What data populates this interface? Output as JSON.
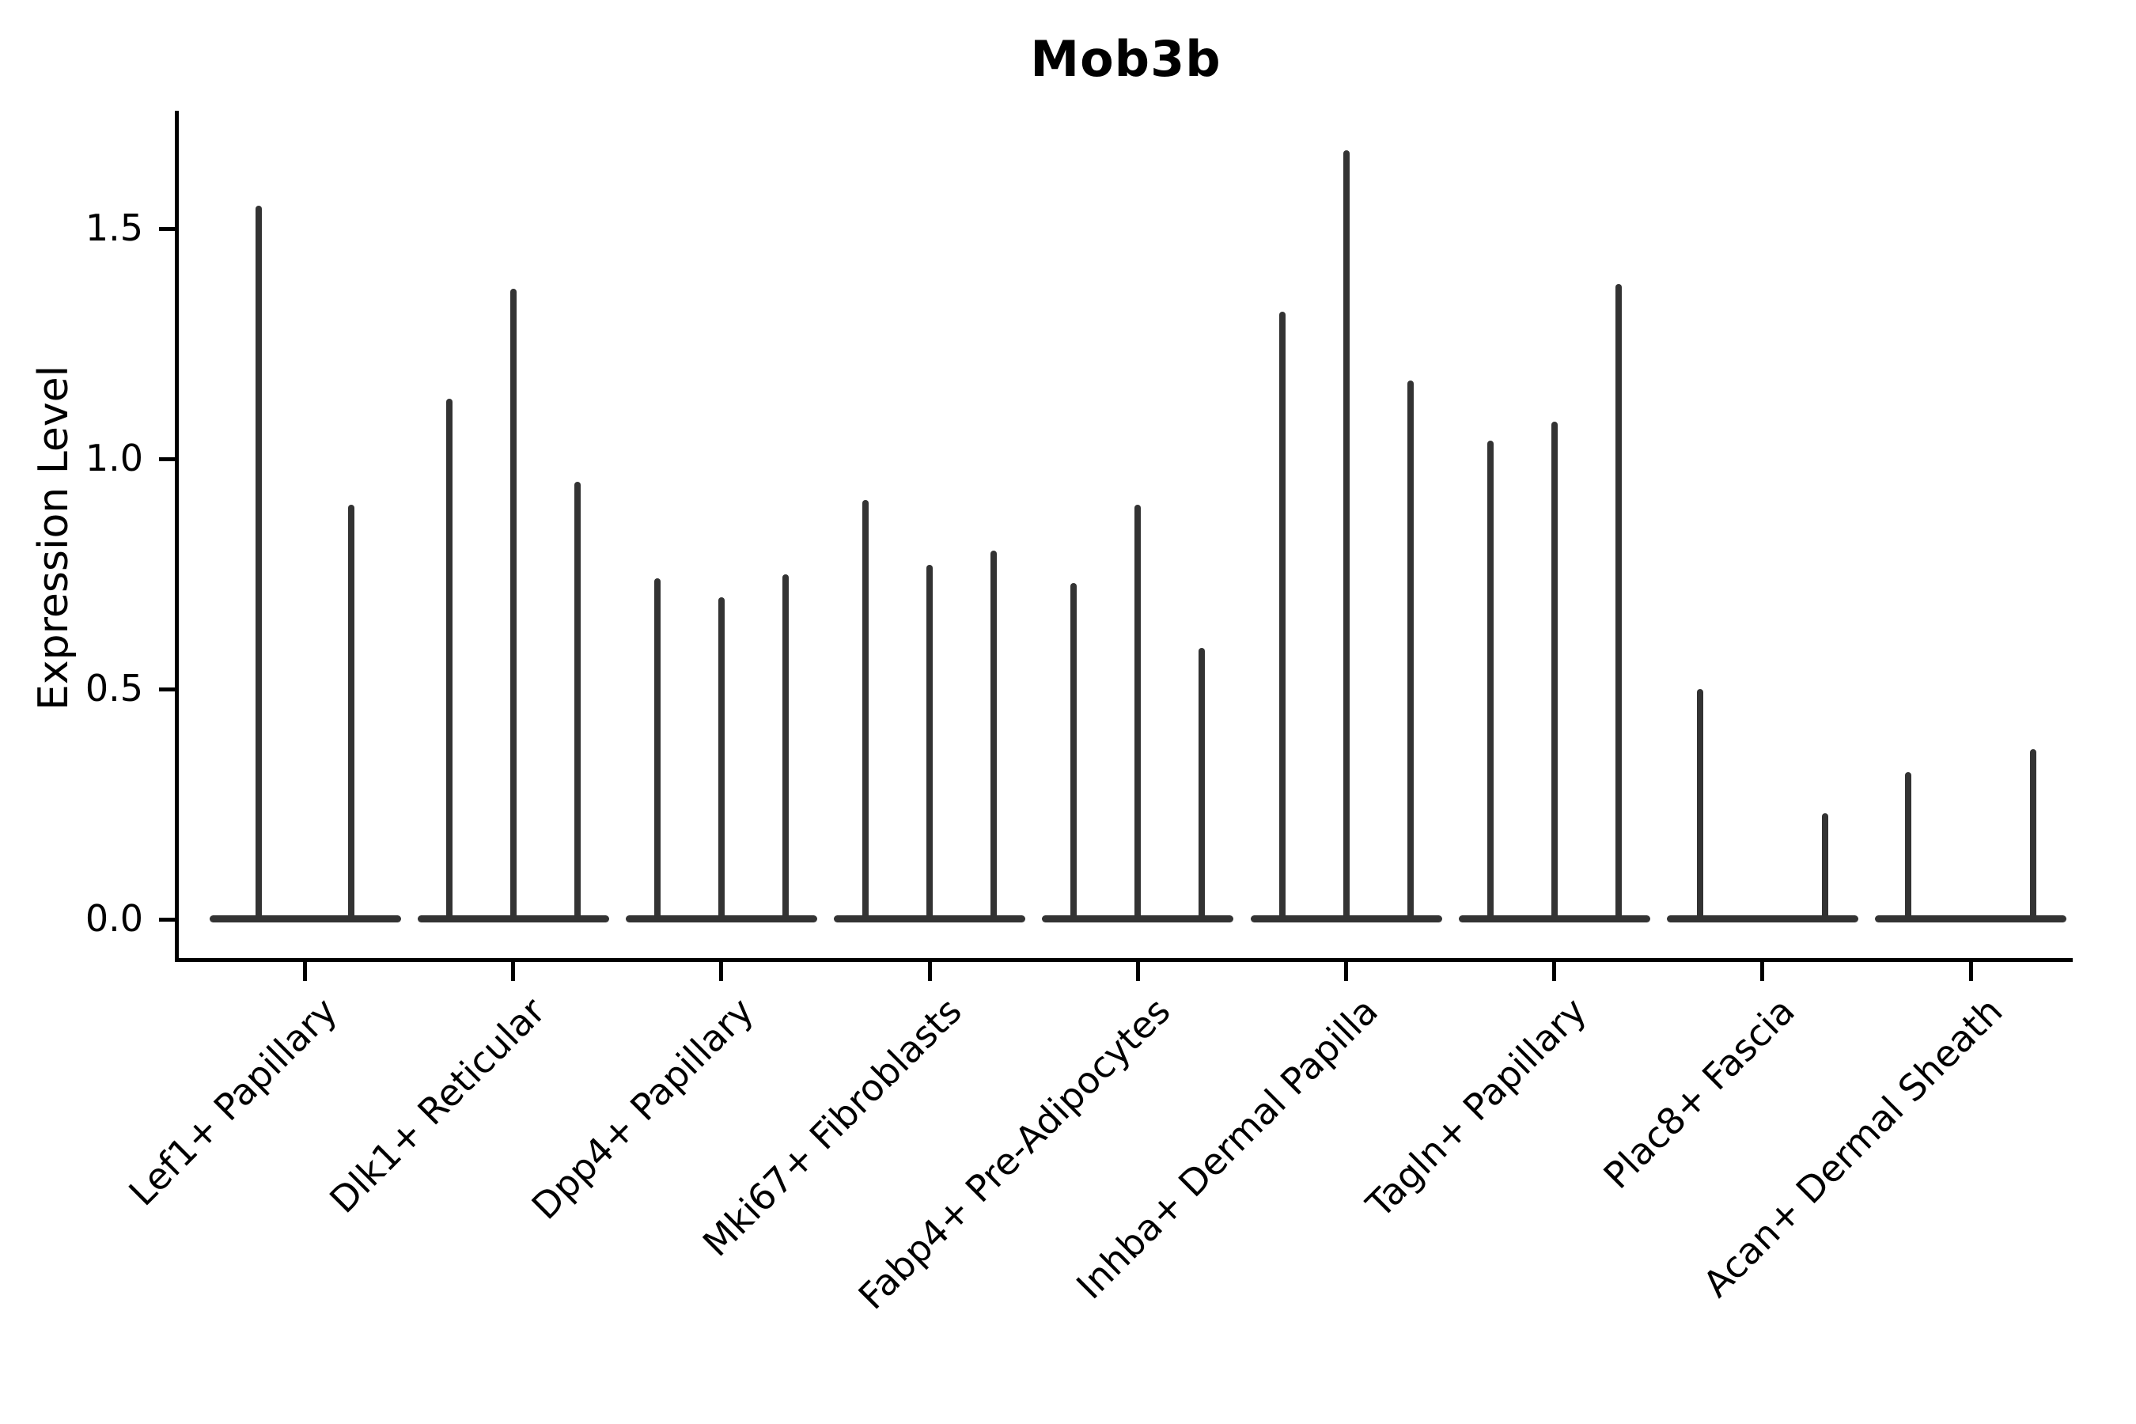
{
  "title": "Mob3b",
  "y_axis": {
    "label": "Expression Level",
    "tick_labels": [
      "0.0",
      "0.5",
      "1.0",
      "1.5"
    ],
    "tick_values": [
      0.0,
      0.5,
      1.0,
      1.5
    ]
  },
  "colors": {
    "violin": "#333333",
    "axis": "#000000",
    "background": "#ffffff",
    "text": "#000000"
  },
  "chart_data": {
    "type": "violin",
    "title": "Mob3b",
    "xlabel": "",
    "ylabel": "Expression Level",
    "ylim": [
      0,
      1.8
    ],
    "yticks": [
      0.0,
      0.5,
      1.0,
      1.5
    ],
    "grid": false,
    "legend": "none",
    "description": "Needle-thin violin plot of Mob3b expression; each cell-type category holds 2-3 sparse violins whose bodies collapse onto the zero baseline with a thin spike up to the maximum expression value.",
    "categories": [
      {
        "label": "Lef1+ Papillary",
        "violins": [
          {
            "offset": -59,
            "max": 1.55
          },
          {
            "offset": 58,
            "max": 0.9
          }
        ]
      },
      {
        "label": "Dlk1+ Reticular",
        "violins": [
          {
            "offset": -81,
            "max": 1.13
          },
          {
            "offset": 0,
            "max": 1.37
          },
          {
            "offset": 81,
            "max": 0.95
          }
        ]
      },
      {
        "label": "Dpp4+ Papillary",
        "violins": [
          {
            "offset": -81,
            "max": 0.74
          },
          {
            "offset": 0,
            "max": 0.7
          },
          {
            "offset": 81,
            "max": 0.75
          }
        ]
      },
      {
        "label": "Mki67+ Fibroblasts",
        "violins": [
          {
            "offset": -81,
            "max": 0.91
          },
          {
            "offset": 0,
            "max": 0.77
          },
          {
            "offset": 81,
            "max": 0.8
          }
        ]
      },
      {
        "label": "Fabp4+ Pre-Adipocytes",
        "violins": [
          {
            "offset": -81,
            "max": 0.73
          },
          {
            "offset": 0,
            "max": 0.9
          },
          {
            "offset": 81,
            "max": 0.59
          }
        ]
      },
      {
        "label": "Inhba+ Dermal Papilla",
        "violins": [
          {
            "offset": -81,
            "max": 1.32
          },
          {
            "offset": 0,
            "max": 1.67
          },
          {
            "offset": 81,
            "max": 1.17
          }
        ]
      },
      {
        "label": "Tagln+ Papillary",
        "violins": [
          {
            "offset": -81,
            "max": 1.04
          },
          {
            "offset": 0,
            "max": 1.08
          },
          {
            "offset": 81,
            "max": 1.38
          }
        ]
      },
      {
        "label": "Plac8+ Fascia",
        "violins": [
          {
            "offset": -79,
            "max": 0.5
          },
          {
            "offset": 79,
            "max": 0.23
          }
        ]
      },
      {
        "label": "Acan+ Dermal Sheath",
        "violins": [
          {
            "offset": -79,
            "max": 0.32
          },
          {
            "offset": 79,
            "max": 0.37
          }
        ]
      }
    ]
  }
}
